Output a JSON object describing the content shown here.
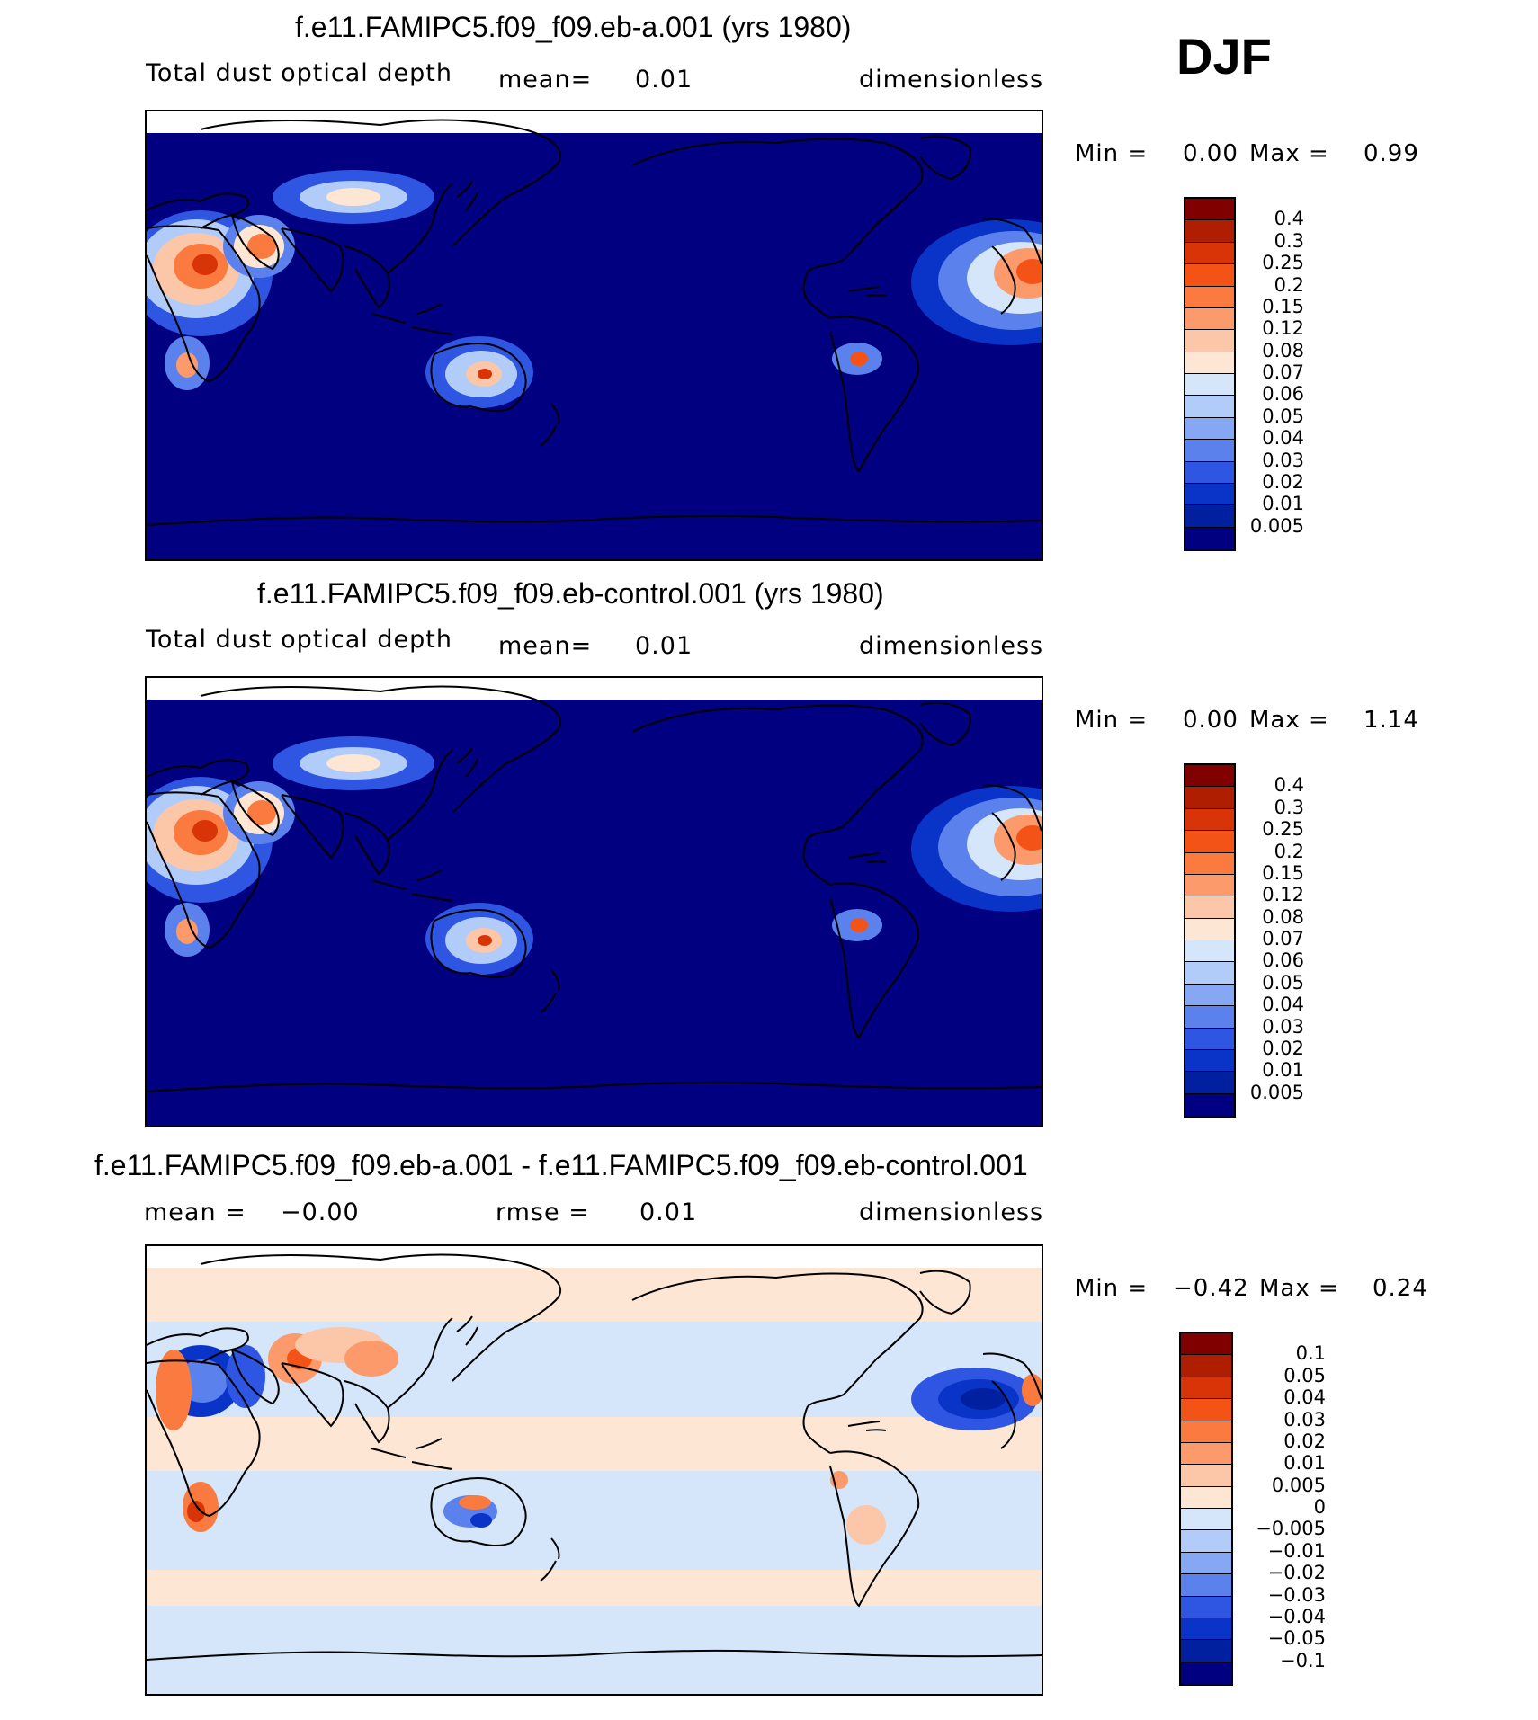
{
  "season": "DJF",
  "panels": [
    {
      "title": "f.e11.FAMIPC5.f09_f09.eb-a.001 (yrs 1980)",
      "variable": "Total dust optical depth",
      "stat_label": "mean=",
      "stat_value": "0.01",
      "units": "dimensionless",
      "min_label": "Min =",
      "min_value": "0.00",
      "max_label": "Max =",
      "max_value": "0.99",
      "background_color": "#000080",
      "colorbar": {
        "labels": [
          "0.4",
          "0.3",
          "0.25",
          "0.2",
          "0.15",
          "0.12",
          "0.08",
          "0.07",
          "0.06",
          "0.05",
          "0.04",
          "0.03",
          "0.02",
          "0.01",
          "0.005"
        ],
        "colors": [
          "#800000",
          "#b01e02",
          "#d93408",
          "#f45318",
          "#fa7a3f",
          "#fd9a6c",
          "#fcc6a8",
          "#fde6d4",
          "#d5e6fa",
          "#b2ccfa",
          "#86a8f4",
          "#5b82ec",
          "#2f56e2",
          "#0a33c8",
          "#0020a0",
          "#000080"
        ]
      }
    },
    {
      "title": "f.e11.FAMIPC5.f09_f09.eb-control.001 (yrs 1980)",
      "variable": "Total dust optical depth",
      "stat_label": "mean=",
      "stat_value": "0.01",
      "units": "dimensionless",
      "min_label": "Min =",
      "min_value": "0.00",
      "max_label": "Max =",
      "max_value": "1.14",
      "background_color": "#000080",
      "colorbar": {
        "labels": [
          "0.4",
          "0.3",
          "0.25",
          "0.2",
          "0.15",
          "0.12",
          "0.08",
          "0.07",
          "0.06",
          "0.05",
          "0.04",
          "0.03",
          "0.02",
          "0.01",
          "0.005"
        ],
        "colors": [
          "#800000",
          "#b01e02",
          "#d93408",
          "#f45318",
          "#fa7a3f",
          "#fd9a6c",
          "#fcc6a8",
          "#fde6d4",
          "#d5e6fa",
          "#b2ccfa",
          "#86a8f4",
          "#5b82ec",
          "#2f56e2",
          "#0a33c8",
          "#0020a0",
          "#000080"
        ]
      }
    },
    {
      "title": "f.e11.FAMIPC5.f09_f09.eb-a.001 - f.e11.FAMIPC5.f09_f09.eb-control.001",
      "mean_label": "mean =",
      "mean_value": "−0.00",
      "rmse_label": "rmse =",
      "rmse_value": "0.01",
      "units": "dimensionless",
      "min_label": "Min =",
      "min_value": "−0.42",
      "max_label": "Max =",
      "max_value": "0.24",
      "background_color": "#d5e6fa",
      "colorbar": {
        "labels": [
          "0.1",
          "0.05",
          "0.04",
          "0.03",
          "0.02",
          "0.01",
          "0.005",
          "0",
          "−0.005",
          "−0.01",
          "−0.02",
          "−0.03",
          "−0.04",
          "−0.05",
          "−0.1"
        ],
        "colors": [
          "#800000",
          "#b01e02",
          "#d93408",
          "#f45318",
          "#fa7a3f",
          "#fd9a6c",
          "#fcc6a8",
          "#fde6d4",
          "#d5e6fa",
          "#b2ccfa",
          "#86a8f4",
          "#5b82ec",
          "#2f56e2",
          "#0a33c8",
          "#0020a0",
          "#000080"
        ]
      }
    }
  ]
}
